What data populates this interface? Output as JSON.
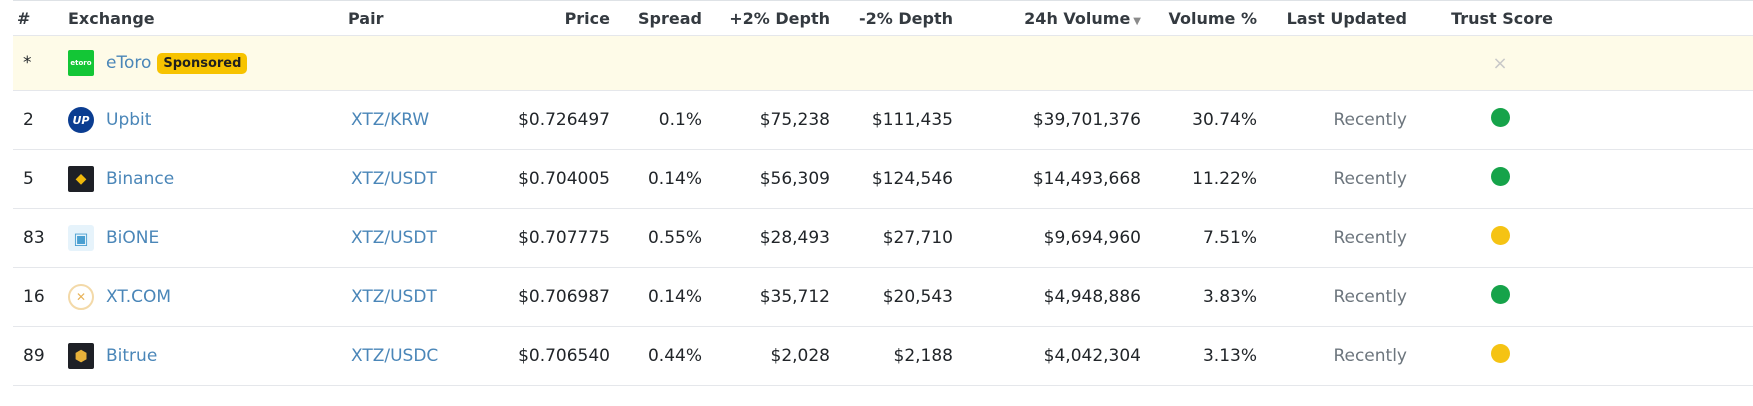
{
  "headers": {
    "rank": "#",
    "exchange": "Exchange",
    "pair": "Pair",
    "price": "Price",
    "spread": "Spread",
    "depth_plus": "+2% Depth",
    "depth_minus": "-2% Depth",
    "volume": "24h Volume",
    "volume_pct": "Volume %",
    "last_updated": "Last Updated",
    "trust": "Trust Score"
  },
  "sponsored": {
    "rank": "*",
    "exchange": "eToro",
    "logo_text": "etoro",
    "badge": "Sponsored",
    "close_glyph": "×"
  },
  "rows": [
    {
      "rank": "2",
      "exchange": "Upbit",
      "logo": "upbit-logo",
      "logo_text": "UP",
      "pair": "XTZ/KRW",
      "price": "$0.726497",
      "spread": "0.1%",
      "depth_plus": "$75,238",
      "depth_minus": "$111,435",
      "volume": "$39,701,376",
      "volume_pct": "30.74%",
      "last_updated": "Recently",
      "trust_color": "#16a34a"
    },
    {
      "rank": "5",
      "exchange": "Binance",
      "logo": "binance-logo",
      "logo_text": "◆",
      "pair": "XTZ/USDT",
      "price": "$0.704005",
      "spread": "0.14%",
      "depth_plus": "$56,309",
      "depth_minus": "$124,546",
      "volume": "$14,493,668",
      "volume_pct": "11.22%",
      "last_updated": "Recently",
      "trust_color": "#16a34a"
    },
    {
      "rank": "83",
      "exchange": "BiONE",
      "logo": "bione-logo",
      "logo_text": "▣",
      "pair": "XTZ/USDT",
      "price": "$0.707775",
      "spread": "0.55%",
      "depth_plus": "$28,493",
      "depth_minus": "$27,710",
      "volume": "$9,694,960",
      "volume_pct": "7.51%",
      "last_updated": "Recently",
      "trust_color": "#f5c313"
    },
    {
      "rank": "16",
      "exchange": "XT.COM",
      "logo": "xtcom-logo",
      "logo_text": "✕",
      "pair": "XTZ/USDT",
      "price": "$0.706987",
      "spread": "0.14%",
      "depth_plus": "$35,712",
      "depth_minus": "$20,543",
      "volume": "$4,948,886",
      "volume_pct": "3.83%",
      "last_updated": "Recently",
      "trust_color": "#16a34a"
    },
    {
      "rank": "89",
      "exchange": "Bitrue",
      "logo": "bitrue-logo",
      "logo_text": "⬢",
      "pair": "XTZ/USDC",
      "price": "$0.706540",
      "spread": "0.44%",
      "depth_plus": "$2,028",
      "depth_minus": "$2,188",
      "volume": "$4,042,304",
      "volume_pct": "3.13%",
      "last_updated": "Recently",
      "trust_color": "#f5c313"
    }
  ],
  "colors": {
    "etoro": "#13c636",
    "upbit": "#0b3d91",
    "binance": "#1e2026",
    "binance_gold": "#f0b90b",
    "bione": "#4a9fd1",
    "xtcom": "#e8b35a",
    "bitrue": "#1e2026",
    "bitrue_gold": "#e8b13a"
  }
}
